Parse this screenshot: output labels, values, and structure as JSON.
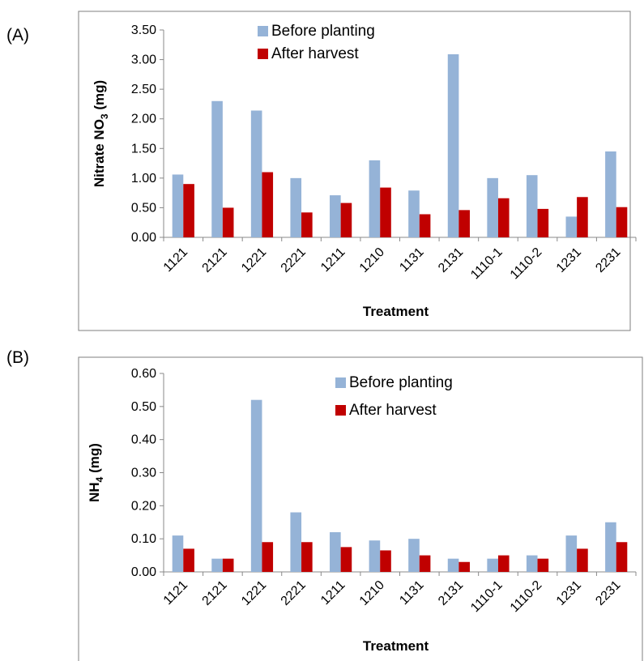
{
  "panels": {
    "a_label": "(A)",
    "b_label": "(B)"
  },
  "colors": {
    "before": "#95B3D7",
    "after": "#C00000",
    "axis": "#888888",
    "frame": "#7f7f7f"
  },
  "chart_data": [
    {
      "type": "bar",
      "categories": [
        "1121",
        "2121",
        "1221",
        "2221",
        "1211",
        "1210",
        "1131",
        "2131",
        "1110-1",
        "1110-2",
        "1231",
        "2231"
      ],
      "series": [
        {
          "name": "Before planting",
          "values": [
            1.06,
            2.3,
            2.14,
            1.0,
            0.71,
            1.3,
            0.79,
            3.09,
            1.0,
            1.05,
            0.35,
            1.45
          ]
        },
        {
          "name": "After harvest",
          "values": [
            0.9,
            0.5,
            1.1,
            0.42,
            0.58,
            0.84,
            0.39,
            0.46,
            0.66,
            0.48,
            0.68,
            0.51
          ]
        }
      ],
      "xlabel": "Treatment",
      "ylabel_main": "Nitrate NO",
      "ylabel_sub": "3",
      "ylabel_unit": " (mg)",
      "ylim": [
        0,
        3.5
      ],
      "yticks": [
        "0.00",
        "0.50",
        "1.00",
        "1.50",
        "2.00",
        "2.50",
        "3.00",
        "3.50"
      ],
      "legend_position": "top-center",
      "grid": false
    },
    {
      "type": "bar",
      "categories": [
        "1121",
        "2121",
        "1221",
        "2221",
        "1211",
        "1210",
        "1131",
        "2131",
        "1110-1",
        "1110-2",
        "1231",
        "2231"
      ],
      "series": [
        {
          "name": "Before planting",
          "values": [
            0.11,
            0.04,
            0.52,
            0.18,
            0.12,
            0.095,
            0.1,
            0.04,
            0.04,
            0.05,
            0.11,
            0.15
          ]
        },
        {
          "name": "After harvest",
          "values": [
            0.07,
            0.04,
            0.09,
            0.09,
            0.075,
            0.065,
            0.05,
            0.03,
            0.05,
            0.04,
            0.07,
            0.09
          ]
        }
      ],
      "xlabel": "Treatment",
      "ylabel_main": "NH",
      "ylabel_sub": "4",
      "ylabel_unit": " (mg)",
      "ylim": [
        0,
        0.6
      ],
      "yticks": [
        "0.00",
        "0.10",
        "0.20",
        "0.30",
        "0.40",
        "0.50",
        "0.60"
      ],
      "legend_position": "top-center",
      "grid": false
    }
  ]
}
